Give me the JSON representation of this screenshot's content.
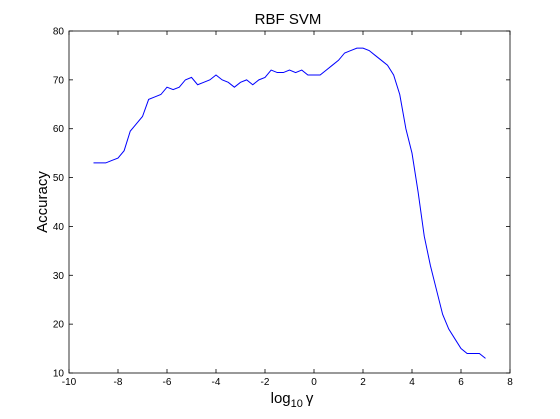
{
  "chart_data": {
    "type": "line",
    "title": "RBF SVM",
    "xlabel": {
      "base": "log",
      "subscript": "10",
      "symbol": "γ"
    },
    "ylabel": "Accuracy",
    "xlim": [
      -10,
      8
    ],
    "ylim": [
      10,
      80
    ],
    "xticks": [
      "-10",
      "-8",
      "-6",
      "-4",
      "-2",
      "0",
      "2",
      "4",
      "6",
      "8"
    ],
    "yticks": [
      "10",
      "20",
      "30",
      "40",
      "50",
      "60",
      "70",
      "80"
    ],
    "grid": false,
    "line_color": "#0000ff",
    "series": [
      {
        "x": [
          -9.0,
          -8.75,
          -8.5,
          -8.25,
          -8.0,
          -7.75,
          -7.5,
          -7.25,
          -7.0,
          -6.75,
          -6.5,
          -6.25,
          -6.0,
          -5.75,
          -5.5,
          -5.25,
          -5.0,
          -4.75,
          -4.5,
          -4.25,
          -4.0,
          -3.75,
          -3.5,
          -3.25,
          -3.0,
          -2.75,
          -2.5,
          -2.25,
          -2.0,
          -1.75,
          -1.5,
          -1.25,
          -1.0,
          -0.75,
          -0.5,
          -0.25,
          0.0,
          0.25,
          0.5,
          0.75,
          1.0,
          1.25,
          1.5,
          1.75,
          2.0,
          2.25,
          2.5,
          2.75,
          3.0,
          3.25,
          3.5,
          3.75,
          4.0,
          4.25,
          4.5,
          4.75,
          5.0,
          5.25,
          5.5,
          5.75,
          6.0,
          6.25,
          6.5,
          6.75,
          7.0
        ],
        "values": [
          53,
          53,
          53,
          53.5,
          54,
          55.5,
          59.5,
          61,
          62.5,
          66,
          66.5,
          67,
          68.5,
          68,
          68.5,
          70,
          70.5,
          69,
          69.5,
          70,
          71,
          70,
          69.5,
          68.5,
          69.5,
          70,
          69,
          70,
          70.5,
          72,
          71.5,
          71.5,
          72,
          71.5,
          72,
          71,
          71,
          71,
          72,
          73,
          74,
          75.5,
          76,
          76.5,
          76.5,
          76,
          75,
          74,
          73,
          71,
          67,
          60,
          55,
          47,
          38,
          32,
          27,
          22,
          19,
          17,
          15,
          14,
          14,
          14,
          13
        ]
      }
    ]
  }
}
